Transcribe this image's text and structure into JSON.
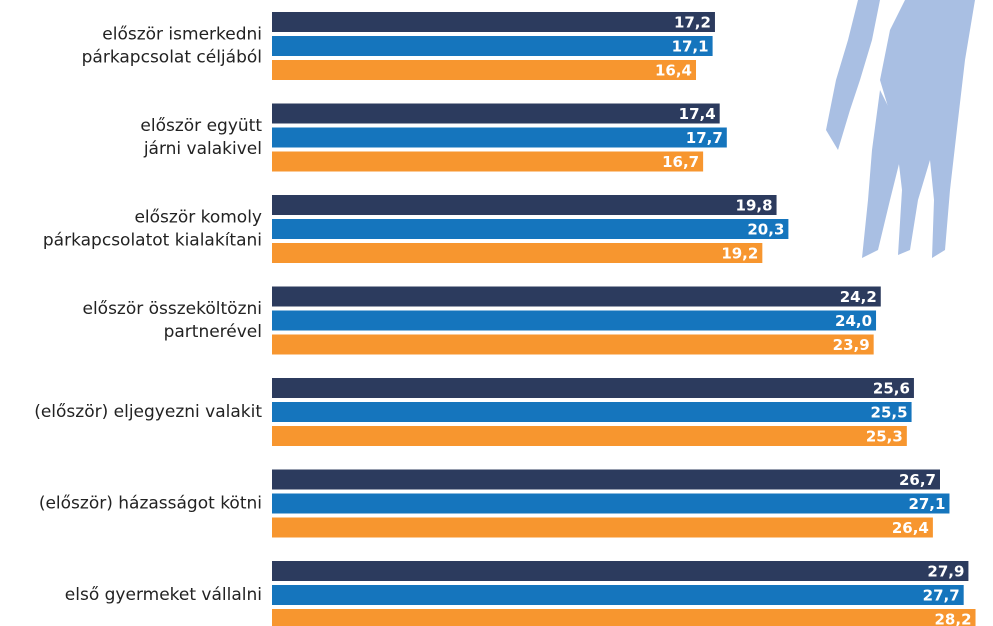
{
  "chart_data": {
    "type": "barh",
    "categories": [
      [
        "először ismerkedni",
        "párkapcsolat céljából"
      ],
      [
        "először együtt",
        "járni valakivel"
      ],
      [
        "először komoly",
        "párkapcsolatot kialakítani"
      ],
      [
        "először összeköltözni",
        "partnerével"
      ],
      [
        "(először) eljegyezni valakit"
      ],
      [
        "(először) házasságot kötni"
      ],
      [
        "első gyermeket vállalni"
      ]
    ],
    "series": [
      {
        "color": "#2c3b5e",
        "values": [
          17.2,
          17.4,
          19.8,
          24.2,
          25.6,
          26.7,
          27.9
        ],
        "value_labels": [
          "17,2",
          "17,4",
          "19,8",
          "24,2",
          "25,6",
          "26,7",
          "27,9"
        ]
      },
      {
        "color": "#1575bd",
        "values": [
          17.1,
          17.7,
          20.3,
          24.0,
          25.5,
          27.1,
          27.7
        ],
        "value_labels": [
          "17,1",
          "17,7",
          "20,3",
          "24,0",
          "25,5",
          "27,1",
          "27,7"
        ]
      },
      {
        "color": "#f7962f",
        "values": [
          16.4,
          16.7,
          19.2,
          23.9,
          25.3,
          26.4,
          28.2
        ],
        "value_labels": [
          "16,4",
          "16,7",
          "19,2",
          "23,9",
          "25,3",
          "26,4",
          "28,2"
        ]
      }
    ],
    "xlim": [
      -1.5,
      28.6
    ]
  }
}
